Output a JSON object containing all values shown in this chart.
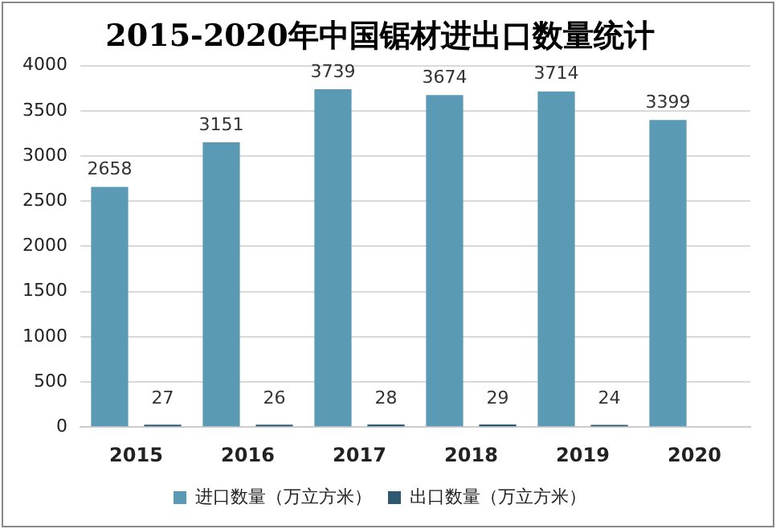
{
  "chart_data": {
    "type": "bar",
    "title": "2015-2020年中国锯材进出口数量统计",
    "categories": [
      "2015",
      "2016",
      "2017",
      "2018",
      "2019",
      "2020"
    ],
    "series": [
      {
        "name": "进口数量（万立方米）",
        "color": "#5a9ab5",
        "values": [
          2658,
          3151,
          3739,
          3674,
          3714,
          3399
        ]
      },
      {
        "name": "出口数量（万立方米）",
        "color": "#2d5a70",
        "values": [
          27,
          26,
          28,
          29,
          24,
          null
        ]
      }
    ],
    "ylim": [
      0,
      4000
    ],
    "yticks": [
      0,
      500,
      1000,
      1500,
      2000,
      2500,
      3000,
      3500,
      4000
    ],
    "grid": "y",
    "legend": "bottom",
    "data_labels": true
  }
}
